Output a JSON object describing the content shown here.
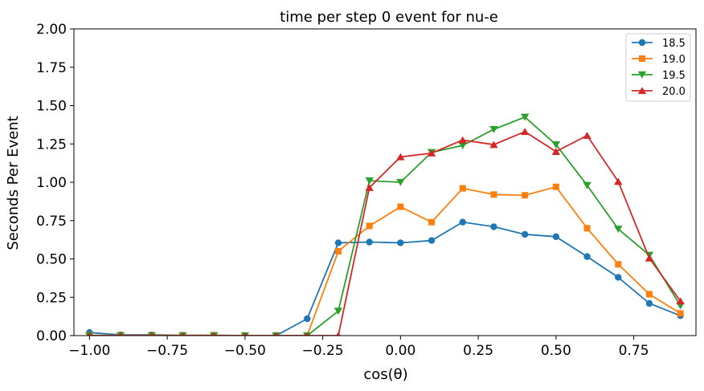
{
  "chart_data": {
    "type": "line",
    "title": "time per step 0 event for nu-e",
    "xlabel": "cos(θ)",
    "ylabel": "Seconds Per Event",
    "xlim": [
      -1.05,
      0.95
    ],
    "ylim": [
      0,
      2.0
    ],
    "xticks": [
      -1.0,
      -0.75,
      -0.5,
      -0.25,
      0.0,
      0.25,
      0.5,
      0.75
    ],
    "xtick_labels": [
      "−1.00",
      "−0.75",
      "−0.50",
      "−0.25",
      "0.00",
      "0.25",
      "0.50",
      "0.75"
    ],
    "yticks": [
      0,
      0.25,
      0.5,
      0.75,
      1.0,
      1.25,
      1.5,
      1.75,
      2.0
    ],
    "ytick_labels": [
      "0.00",
      "0.25",
      "0.50",
      "0.75",
      "1.00",
      "1.25",
      "1.50",
      "1.75",
      "2.00"
    ],
    "grid": false,
    "legend_position": "top-right",
    "x": [
      -1.0,
      -0.9,
      -0.8,
      -0.7,
      -0.6,
      -0.5,
      -0.4,
      -0.3,
      -0.2,
      -0.1,
      0.0,
      0.1,
      0.2,
      0.3,
      0.4,
      0.5,
      0.6,
      0.7,
      0.8,
      0.9
    ],
    "series": [
      {
        "name": "18.5",
        "color": "#1f77b4",
        "marker": "circle",
        "values": [
          0.02,
          0.005,
          0.005,
          0.002,
          0.002,
          0.0,
          0.0,
          0.11,
          0.605,
          0.61,
          0.605,
          0.62,
          0.74,
          0.71,
          0.66,
          0.645,
          0.515,
          0.38,
          0.21,
          0.13
        ]
      },
      {
        "name": "19.0",
        "color": "#ff7f0e",
        "marker": "square",
        "values": [
          0.002,
          0.002,
          0.002,
          0.002,
          0.002,
          0.0,
          0.0,
          0.0,
          0.55,
          0.715,
          0.84,
          0.74,
          0.96,
          0.92,
          0.915,
          0.97,
          0.7,
          0.465,
          0.27,
          0.145
        ]
      },
      {
        "name": "19.5",
        "color": "#2ca02c",
        "marker": "triangle-down",
        "values": [
          0.0,
          0.0,
          0.0,
          0.0,
          0.0,
          0.0,
          0.0,
          0.0,
          0.16,
          1.01,
          1.0,
          1.195,
          1.24,
          1.345,
          1.425,
          1.245,
          0.98,
          0.695,
          0.525,
          0.195
        ]
      },
      {
        "name": "20.0",
        "color": "#d62728",
        "marker": "triangle-up",
        "values": [
          0.0,
          0.0,
          0.0,
          0.0,
          0.0,
          0.0,
          0.0,
          0.0,
          0.0,
          0.965,
          1.165,
          1.19,
          1.275,
          1.245,
          1.33,
          1.2,
          1.305,
          1.005,
          0.505,
          0.225
        ]
      }
    ]
  }
}
